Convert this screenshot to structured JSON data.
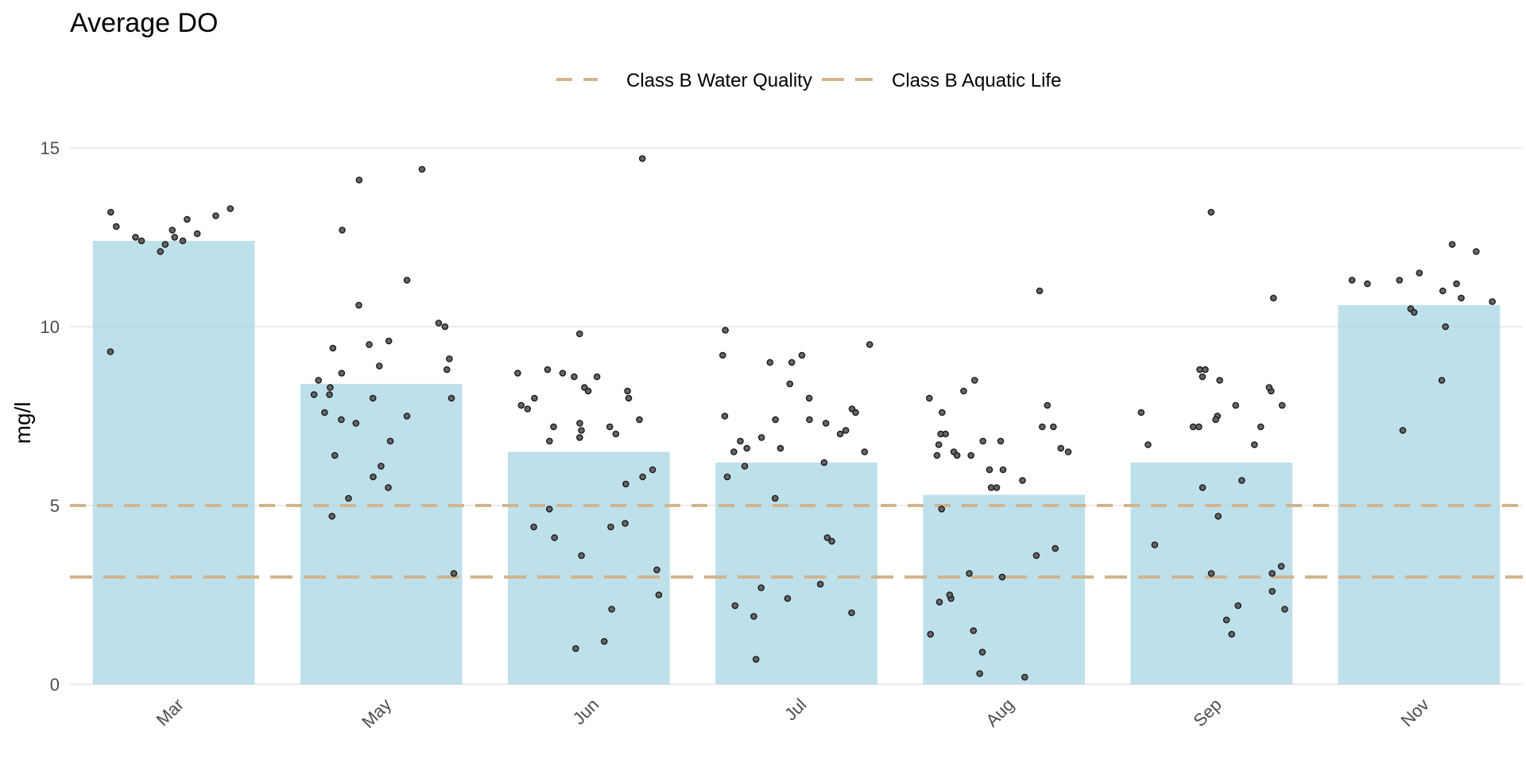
{
  "chart_data": {
    "type": "bar",
    "title": "Average DO",
    "xlabel": "",
    "ylabel": "mg/l",
    "ylim": [
      0,
      15.8
    ],
    "yticks": [
      0,
      5,
      10,
      15
    ],
    "grid": true,
    "legend_position": "top",
    "categories": [
      "Mar",
      "May",
      "Jun",
      "Jul",
      "Aug",
      "Sep",
      "Nov"
    ],
    "series": [
      {
        "values": [
          12.4,
          8.4,
          6.5,
          6.2,
          5.3,
          6.2,
          10.6
        ]
      }
    ],
    "observations": [
      {
        "category": "Mar",
        "values": [
          12.7,
          12.4,
          12.8,
          12.5,
          12.3,
          12.5,
          13.2,
          13.3,
          13.0,
          12.1,
          12.4,
          13.1,
          12.6,
          9.3
        ]
      },
      {
        "category": "May",
        "values": [
          6.1,
          8.7,
          11.3,
          8.3,
          6.8,
          8.9,
          9.4,
          8.1,
          8.8,
          8.0,
          7.6,
          8.0,
          9.1,
          6.4,
          9.5,
          9.6,
          7.5,
          5.2,
          4.7,
          3.1,
          5.8,
          7.4,
          5.5,
          7.3,
          8.1,
          14.4,
          14.1,
          10.6,
          8.5,
          10.0,
          12.7,
          10.1
        ]
      },
      {
        "category": "Jun",
        "values": [
          8.3,
          4.9,
          1.2,
          8.6,
          8.2,
          2.1,
          8.0,
          8.8,
          7.1,
          7.7,
          7.8,
          1.0,
          7.0,
          4.4,
          3.2,
          8.7,
          9.8,
          8.2,
          6.9,
          7.4,
          3.6,
          7.3,
          7.2,
          6.8,
          4.5,
          4.4,
          4.1,
          8.0,
          14.7,
          2.5,
          6.0,
          5.8,
          5.6,
          7.2,
          8.6,
          8.7
        ]
      },
      {
        "category": "Jul",
        "values": [
          9.0,
          5.2,
          1.9,
          6.6,
          6.2,
          4.0,
          6.9,
          6.5,
          9.2,
          7.4,
          8.0,
          2.4,
          2.2,
          9.5,
          8.4,
          7.7,
          7.4,
          9.0,
          6.8,
          7.0,
          7.6,
          2.7,
          9.9,
          6.1,
          4.1,
          7.3,
          2.8,
          2.0,
          0.7,
          7.1,
          6.6,
          5.8,
          6.5,
          7.5,
          9.2
        ]
      },
      {
        "category": "Aug",
        "values": [
          7.2,
          3.8,
          2.4,
          6.0,
          6.4,
          6.4,
          3.0,
          6.7,
          0.9,
          8.2,
          1.5,
          7.8,
          2.5,
          6.5,
          8.0,
          5.7,
          7.6,
          6.0,
          7.0,
          6.8,
          5.5,
          1.4,
          7.2,
          5.5,
          11.0,
          0.3,
          6.5,
          3.6,
          0.2,
          3.1,
          6.8,
          7.0,
          6.6,
          4.9,
          2.3,
          6.4,
          8.5
        ]
      },
      {
        "category": "Sep",
        "values": [
          7.6,
          1.8,
          8.6,
          7.2,
          7.5,
          3.1,
          7.4,
          8.8,
          3.9,
          8.2,
          7.8,
          3.1,
          2.6,
          2.2,
          8.8,
          3.3,
          8.3,
          7.2,
          13.2,
          5.7,
          6.7,
          10.8,
          4.7,
          2.1,
          1.4,
          7.2,
          5.5,
          6.7,
          7.8,
          8.5
        ]
      },
      {
        "category": "Nov",
        "values": [
          8.5,
          7.1,
          11.2,
          10.8,
          11.5,
          10.5,
          12.1,
          12.3,
          11.3,
          11.3,
          10.4,
          10.7,
          11.0,
          11.2,
          10.0
        ]
      }
    ],
    "reference_lines": [
      {
        "name": "Class B Water Quality",
        "value": 5,
        "color": "#d2b48c",
        "dash": "short"
      },
      {
        "name": "Class B Aquatic Life",
        "value": 3,
        "color": "#d2b48c",
        "dash": "long"
      }
    ],
    "colors": {
      "bar": "#add8e6",
      "point_fill": "#666666",
      "point_stroke": "#1a1a1a",
      "grid": "#e5e5e5",
      "reference": "#d2b48c"
    }
  }
}
